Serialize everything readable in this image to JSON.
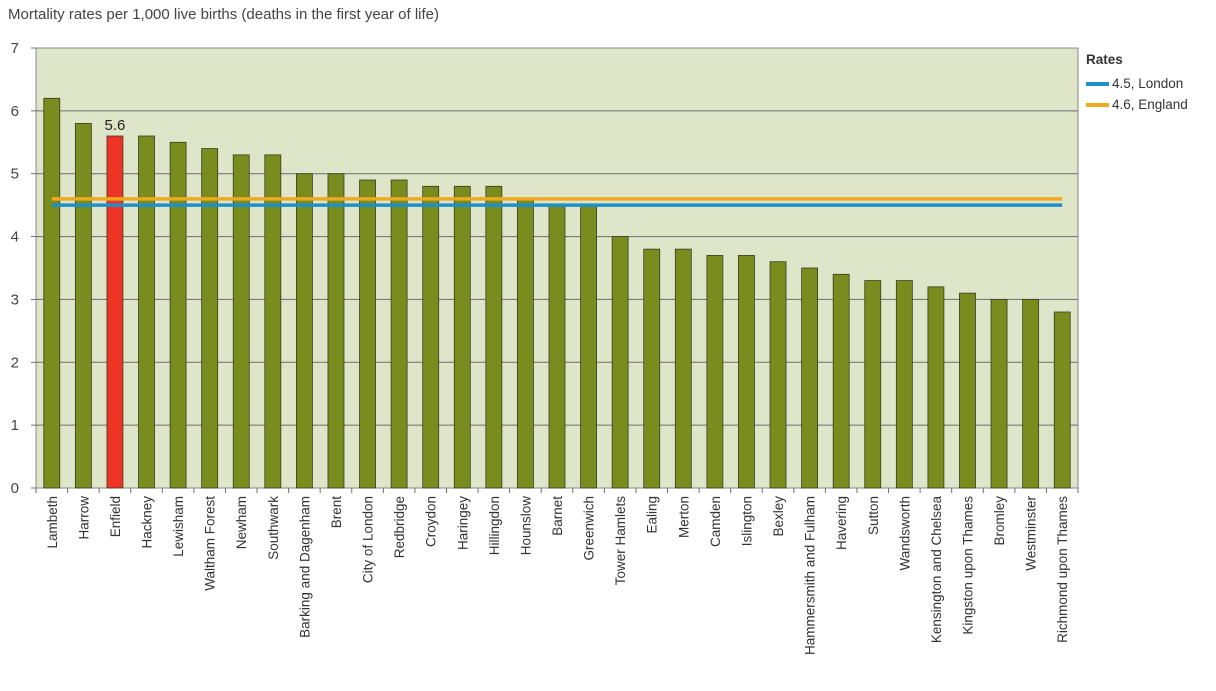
{
  "chart_data": {
    "type": "bar",
    "title": "Mortality rates per 1,000 live births (deaths in the first year of life)",
    "xlabel": "",
    "ylabel": "",
    "ylim": [
      0,
      7
    ],
    "yticks": [
      "0",
      "1",
      "2",
      "3",
      "4",
      "5",
      "6",
      "7"
    ],
    "grid": true,
    "legend_position": "right",
    "categories": [
      "Lambeth",
      "Harrow",
      "Enfield",
      "Hackney",
      "Lewisham",
      "Waltham Forest",
      "Newham",
      "Southwark",
      "Barking and Dagenham",
      "Brent",
      "City of London",
      "Redbridge",
      "Croydon",
      "Haringey",
      "Hillingdon",
      "Hounslow",
      "Barnet",
      "Greenwich",
      "Tower Hamlets",
      "Ealing",
      "Merton",
      "Camden",
      "Islington",
      "Bexley",
      "Hammersmith and Fulham",
      "Havering",
      "Sutton",
      "Wandsworth",
      "Kensington and Chelsea",
      "Kingston upon Thames",
      "Bromley",
      "Westminster",
      "Richmond upon Thames"
    ],
    "values": [
      6.2,
      5.8,
      5.6,
      5.6,
      5.5,
      5.4,
      5.3,
      5.3,
      5.0,
      5.0,
      4.9,
      4.9,
      4.8,
      4.8,
      4.8,
      4.6,
      4.5,
      4.5,
      4.0,
      3.8,
      3.8,
      3.7,
      3.7,
      3.6,
      3.5,
      3.4,
      3.3,
      3.3,
      3.2,
      3.1,
      3.0,
      3.0,
      2.8
    ],
    "highlight_index": 2,
    "data_labels": [
      {
        "index": 2,
        "text": "5.6"
      }
    ],
    "reference_lines": [
      {
        "name": "4.5, London",
        "value": 4.5,
        "color": "#1f8fc9"
      },
      {
        "name": "4.6, England",
        "value": 4.6,
        "color": "#f0a81c"
      }
    ],
    "legend_title": "Rates",
    "colors": {
      "bar": "#7a8c1e",
      "highlight": "#ee3424",
      "plot_bg": "#dfe5c9",
      "grid": "#6d6d6d"
    }
  }
}
